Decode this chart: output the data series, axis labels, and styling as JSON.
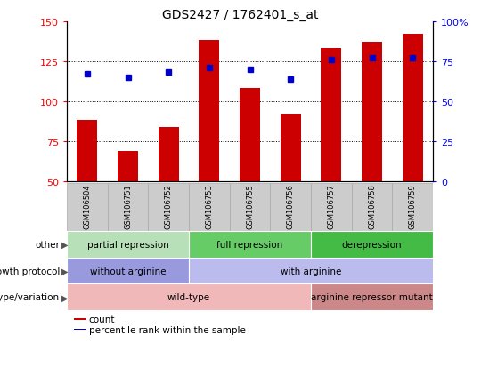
{
  "title": "GDS2427 / 1762401_s_at",
  "samples": [
    "GSM106504",
    "GSM106751",
    "GSM106752",
    "GSM106753",
    "GSM106755",
    "GSM106756",
    "GSM106757",
    "GSM106758",
    "GSM106759"
  ],
  "bar_values": [
    88,
    69,
    84,
    138,
    108,
    92,
    133,
    137,
    142
  ],
  "dot_values": [
    117,
    115,
    118,
    121,
    120,
    114,
    126,
    127,
    127
  ],
  "bar_color": "#cc0000",
  "dot_color": "#0000cc",
  "ylim_left": [
    50,
    150
  ],
  "ylim_right": [
    0,
    100
  ],
  "yticks_left": [
    50,
    75,
    100,
    125,
    150
  ],
  "yticks_right": [
    0,
    25,
    50,
    75,
    100
  ],
  "ytick_labels_right": [
    "0",
    "25",
    "50",
    "75",
    "100%"
  ],
  "grid_values": [
    75,
    100,
    125
  ],
  "annotation_rows": [
    {
      "label": "other",
      "segments": [
        {
          "text": "partial repression",
          "start": 0,
          "end": 3,
          "color": "#b8e0b8"
        },
        {
          "text": "full repression",
          "start": 3,
          "end": 6,
          "color": "#66cc66"
        },
        {
          "text": "derepression",
          "start": 6,
          "end": 9,
          "color": "#44bb44"
        }
      ]
    },
    {
      "label": "growth protocol",
      "segments": [
        {
          "text": "without arginine",
          "start": 0,
          "end": 3,
          "color": "#9999dd"
        },
        {
          "text": "with arginine",
          "start": 3,
          "end": 9,
          "color": "#bbbbee"
        }
      ]
    },
    {
      "label": "genotype/variation",
      "segments": [
        {
          "text": "wild-type",
          "start": 0,
          "end": 6,
          "color": "#f0b8b8"
        },
        {
          "text": "arginine repressor mutant",
          "start": 6,
          "end": 9,
          "color": "#cc8888"
        }
      ]
    }
  ],
  "legend_items": [
    {
      "label": "count",
      "color": "#cc0000"
    },
    {
      "label": "percentile rank within the sample",
      "color": "#0000cc"
    }
  ],
  "fig_width": 5.4,
  "fig_height": 4.14,
  "dpi": 100
}
